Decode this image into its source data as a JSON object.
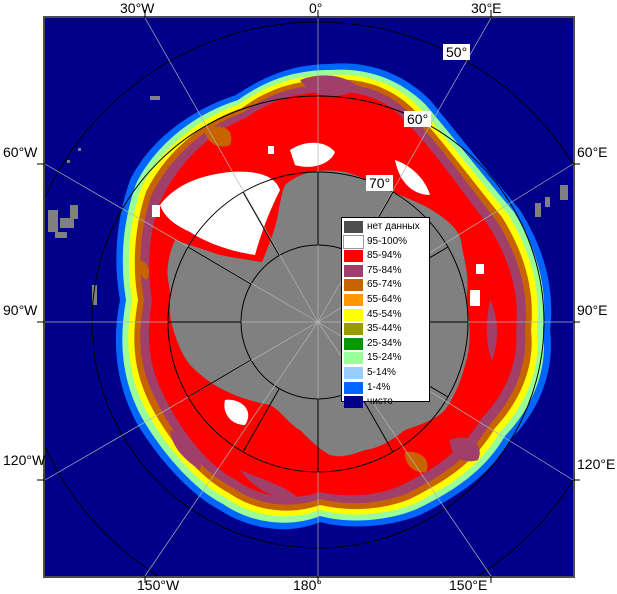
{
  "map": {
    "longitude_labels_top": [
      "30°W",
      "0°",
      "30°E"
    ],
    "longitude_labels_bottom": [
      "150°W",
      "180°",
      "150°E"
    ],
    "longitude_labels_left": [
      "60°W",
      "90°W",
      "120°W"
    ],
    "longitude_labels_right": [
      "60°E",
      "90°E",
      "120°E"
    ],
    "latitude_labels": [
      "50°",
      "60°",
      "70°"
    ],
    "colors": {
      "ocean": "#00008b",
      "land": "#808080",
      "frame": "#4d4d4d",
      "grid": "#b3b3b3"
    }
  },
  "legend": {
    "items": [
      {
        "label": "нет данных",
        "color": "#4d4d4d"
      },
      {
        "label": "95-100%",
        "color": "#ffffff"
      },
      {
        "label": "85-94%",
        "color": "#ff0000"
      },
      {
        "label": "75-84%",
        "color": "#a0406a"
      },
      {
        "label": "65-74%",
        "color": "#c86400"
      },
      {
        "label": "55-64%",
        "color": "#ff9900"
      },
      {
        "label": "45-54%",
        "color": "#ffff00"
      },
      {
        "label": "35-44%",
        "color": "#999900"
      },
      {
        "label": "25-34%",
        "color": "#009900"
      },
      {
        "label": "15-24%",
        "color": "#99ff99"
      },
      {
        "label": "5-14%",
        "color": "#99ccff"
      },
      {
        "label": "1-4%",
        "color": "#0066ff"
      },
      {
        "label": "чисто",
        "color": "#00008b"
      }
    ]
  }
}
